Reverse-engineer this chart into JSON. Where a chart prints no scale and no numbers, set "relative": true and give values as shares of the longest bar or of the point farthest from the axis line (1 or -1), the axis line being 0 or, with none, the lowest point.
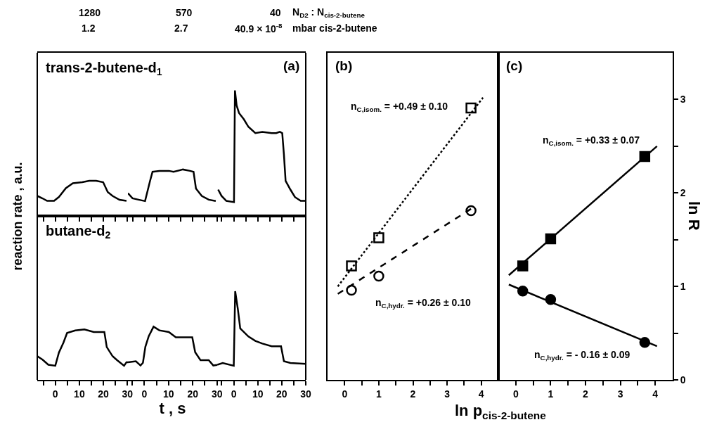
{
  "chart_data": [
    {
      "type": "line",
      "ylabel": "reaction rate , a.u.",
      "relative": true,
      "xlim": [
        -7.5,
        30.2
      ],
      "tick_labels": false,
      "xticks": [
        {
          "value": -5,
          "label": null
        },
        0,
        {
          "value": 5,
          "label": null
        },
        10,
        {
          "value": 15,
          "label": null
        },
        20,
        {
          "value": 25,
          "label": null
        },
        30
      ],
      "annotations": [
        "1280",
        "1.2",
        "570",
        "2.7",
        "40",
        "40.9 × 10$^{-8}$",
        "N$_{D2}$ : N$_{cis-2-butene}$",
        "mbar cis-2-butene"
      ],
      "series": [
        {
          "name": "trans-2-butene-d$_{1}$",
          "color": "#000000",
          "x": [
            -7.5,
            -5.3,
            -3.4,
            -0.5,
            1.5,
            4.4,
            7.3,
            11.2,
            14.1,
            17,
            19.9,
            21.8,
            23.8,
            26.7,
            29.6
          ],
          "values": [
            0.57,
            0.5,
            0.43,
            0.43,
            0.54,
            0.79,
            0.93,
            0.96,
            1,
            1,
            0.96,
            0.68,
            0.57,
            0.46,
            0.43
          ]
        }
      ]
    },
    {
      "type": "line",
      "relative": true,
      "xlim": [
        -6.9,
        30.1
      ],
      "tick_labels": false,
      "xticks": [
        {
          "value": -5,
          "label": null
        },
        0,
        {
          "value": 5,
          "label": null
        },
        10,
        {
          "value": 15,
          "label": null
        },
        20,
        {
          "value": 25,
          "label": null
        },
        30
      ],
      "series": [
        {
          "color": "#000000",
          "x": [
            -6.9,
            -5,
            -2.5,
            0.2,
            2.3,
            3.3,
            6.2,
            10.1,
            12,
            15.9,
            18.8,
            20.3,
            21.3,
            23.7,
            26.6,
            29.5
          ],
          "values": [
            0.49,
            0.38,
            0.35,
            0.32,
            0.76,
            0.95,
            0.97,
            0.97,
            0.95,
            1,
            0.97,
            0.95,
            0.59,
            0.43,
            0.35,
            0.32
          ]
        }
      ]
    },
    {
      "type": "line",
      "relative": true,
      "xlim": [
        -6.9,
        30
      ],
      "tick_labels": false,
      "xticks": [
        {
          "value": -5,
          "label": null
        },
        0,
        {
          "value": 5,
          "label": null
        },
        10,
        {
          "value": 15,
          "label": null
        },
        20,
        {
          "value": 25,
          "label": null
        },
        30
      ],
      "annotations": [
        "(a)"
      ],
      "series": [
        {
          "color": "#000000",
          "x": [
            -6.5,
            -5.1,
            -3.1,
            0.1,
            0.5,
            1.2,
            2.2,
            4.2,
            6.1,
            9,
            11.9,
            15.8,
            17.7,
            19.2,
            20.2,
            20.9,
            21.6,
            23.6,
            25.5,
            27.9,
            30
          ],
          "values": [
            0.21,
            0.16,
            0.12,
            0.11,
            1,
            0.88,
            0.82,
            0.77,
            0.71,
            0.66,
            0.67,
            0.66,
            0.66,
            0.67,
            0.66,
            0.49,
            0.28,
            0.21,
            0.15,
            0.12,
            0.12
          ]
        }
      ]
    },
    {
      "type": "line",
      "relative": true,
      "xlim": [
        -7.5,
        30.2
      ],
      "tick_labels": "x",
      "xticks": [
        {
          "value": -5,
          "label": null
        },
        0,
        {
          "value": 5,
          "label": null
        },
        10,
        {
          "value": 15,
          "label": null
        },
        20,
        {
          "value": 25,
          "label": null
        },
        30
      ],
      "series": [
        {
          "name": "butane-d$_{2}$",
          "color": "#000000",
          "x": [
            -7.5,
            -5.3,
            -2.9,
            0,
            1.5,
            3.4,
            4.9,
            8.3,
            12.1,
            16,
            18.9,
            20.4,
            21.4,
            23.8,
            25.7,
            28.6,
            29.6,
            30.2
          ],
          "values": [
            0.47,
            0.4,
            0.3,
            0.28,
            0.54,
            0.74,
            0.93,
            0.98,
            1,
            0.95,
            0.95,
            0.95,
            0.65,
            0.47,
            0.39,
            0.28,
            0.35,
            0.35
          ]
        }
      ]
    },
    {
      "type": "line",
      "xlabel": "t , s",
      "relative": true,
      "xlim": [
        -6.8,
        30.1
      ],
      "tick_labels": "x",
      "xticks": [
        {
          "value": -5,
          "label": null
        },
        0,
        {
          "value": 5,
          "label": null
        },
        10,
        {
          "value": 15,
          "label": null
        },
        20,
        {
          "value": 25,
          "label": null
        },
        30
      ],
      "series": [
        {
          "color": "#000000",
          "x": [
            -6.8,
            -3.5,
            -1.6,
            -0.6,
            0.4,
            1.8,
            3.8,
            6.2,
            10.1,
            13,
            15.9,
            19.8,
            21,
            23.2,
            26.6,
            28.5,
            30.1
          ],
          "values": [
            0.33,
            0.35,
            0.27,
            0.32,
            0.62,
            0.82,
            1,
            0.93,
            0.9,
            0.8,
            0.8,
            0.8,
            0.52,
            0.37,
            0.37,
            0.27,
            0.28
          ]
        }
      ]
    },
    {
      "type": "line",
      "relative": true,
      "xlim": [
        -6.9,
        30
      ],
      "tick_labels": "x",
      "xticks": [
        {
          "value": -5,
          "label": null
        },
        0,
        {
          "value": 5,
          "label": null
        },
        10,
        {
          "value": 15,
          "label": null
        },
        20,
        {
          "value": 25,
          "label": null
        },
        30
      ],
      "series": [
        {
          "color": "#000000",
          "x": [
            -6.9,
            -4.6,
            0,
            0.6,
            1.7,
            2.7,
            6.1,
            9,
            11.9,
            15.8,
            19.7,
            20.9,
            23.6,
            30
          ],
          "values": [
            0.17,
            0.19,
            0.16,
            1,
            0.8,
            0.58,
            0.49,
            0.44,
            0.41,
            0.38,
            0.38,
            0.21,
            0.19,
            0.18
          ]
        }
      ]
    },
    {
      "type": "scatter",
      "xlabel": "ln p$_{cis-2-butene}$",
      "xlim": [
        -0.5,
        4.5
      ],
      "ylim": [
        0,
        3.5
      ],
      "tick_labels": "x",
      "xticks": [
        0,
        {
          "value": 0.5,
          "label": null
        },
        1,
        {
          "value": 1.5,
          "label": null
        },
        2,
        {
          "value": 2.5,
          "label": null
        },
        3,
        {
          "value": 3.5,
          "label": null
        },
        4
      ],
      "annotations": [
        "(b)",
        "n$_{C,isom.}$ = +0.49 ± 0.10",
        "n$_{C,hydr.}$ = +0.26 ± 0.10"
      ],
      "series": [
        {
          "color": "#000000",
          "marker": "square-open",
          "x": [
            0.2,
            1,
            3.7
          ],
          "values": [
            1.22,
            1.52,
            2.91
          ]
        },
        {
          "color": "#000000",
          "marker": "circle-open",
          "x": [
            0.2,
            1,
            3.7
          ],
          "values": [
            0.96,
            1.11,
            1.81
          ]
        },
        {
          "type": "line",
          "color": "#000000",
          "marker": "none",
          "line_style": "dotted",
          "x": [
            -0.2,
            4.05
          ],
          "values": [
            1.0,
            3.02
          ]
        },
        {
          "type": "line",
          "color": "#000000",
          "marker": "none",
          "line_style": "dashed",
          "x": [
            -0.2,
            3.7
          ],
          "values": [
            0.92,
            1.83
          ]
        }
      ]
    },
    {
      "type": "scatter",
      "ylabel": "ln R",
      "xlim": [
        -0.5,
        4.5
      ],
      "ylim": [
        0,
        3.5
      ],
      "xticks": [
        0,
        {
          "value": 0.5,
          "label": null
        },
        1,
        {
          "value": 1.5,
          "label": null
        },
        2,
        {
          "value": 2.5,
          "label": null
        },
        3,
        {
          "value": 3.5,
          "label": null
        },
        4
      ],
      "yticks": [
        0,
        {
          "value": 0.5,
          "label": null
        },
        1,
        {
          "value": 1.5,
          "label": null
        },
        2,
        {
          "value": 2.5,
          "label": null
        },
        3
      ],
      "annotations": [
        "(c)",
        "n$_{C,isom.}$ = +0.33 ± 0.07",
        "n$_{C,hydr.}$ = - 0.16 ± 0.09"
      ],
      "series": [
        {
          "color": "#000000",
          "marker": "square",
          "x": [
            0.2,
            1,
            3.7
          ],
          "values": [
            1.22,
            1.51,
            2.39
          ]
        },
        {
          "color": "#000000",
          "marker": "circle",
          "x": [
            0.2,
            1,
            3.7
          ],
          "values": [
            0.95,
            0.86,
            0.4
          ]
        },
        {
          "type": "line",
          "color": "#000000",
          "marker": "none",
          "line_style": "solid",
          "x": [
            -0.2,
            4.05
          ],
          "values": [
            1.12,
            2.5
          ]
        },
        {
          "type": "line",
          "color": "#000000",
          "marker": "none",
          "line_style": "solid",
          "x": [
            -0.2,
            4.05
          ],
          "values": [
            1.02,
            0.36
          ]
        }
      ]
    }
  ]
}
